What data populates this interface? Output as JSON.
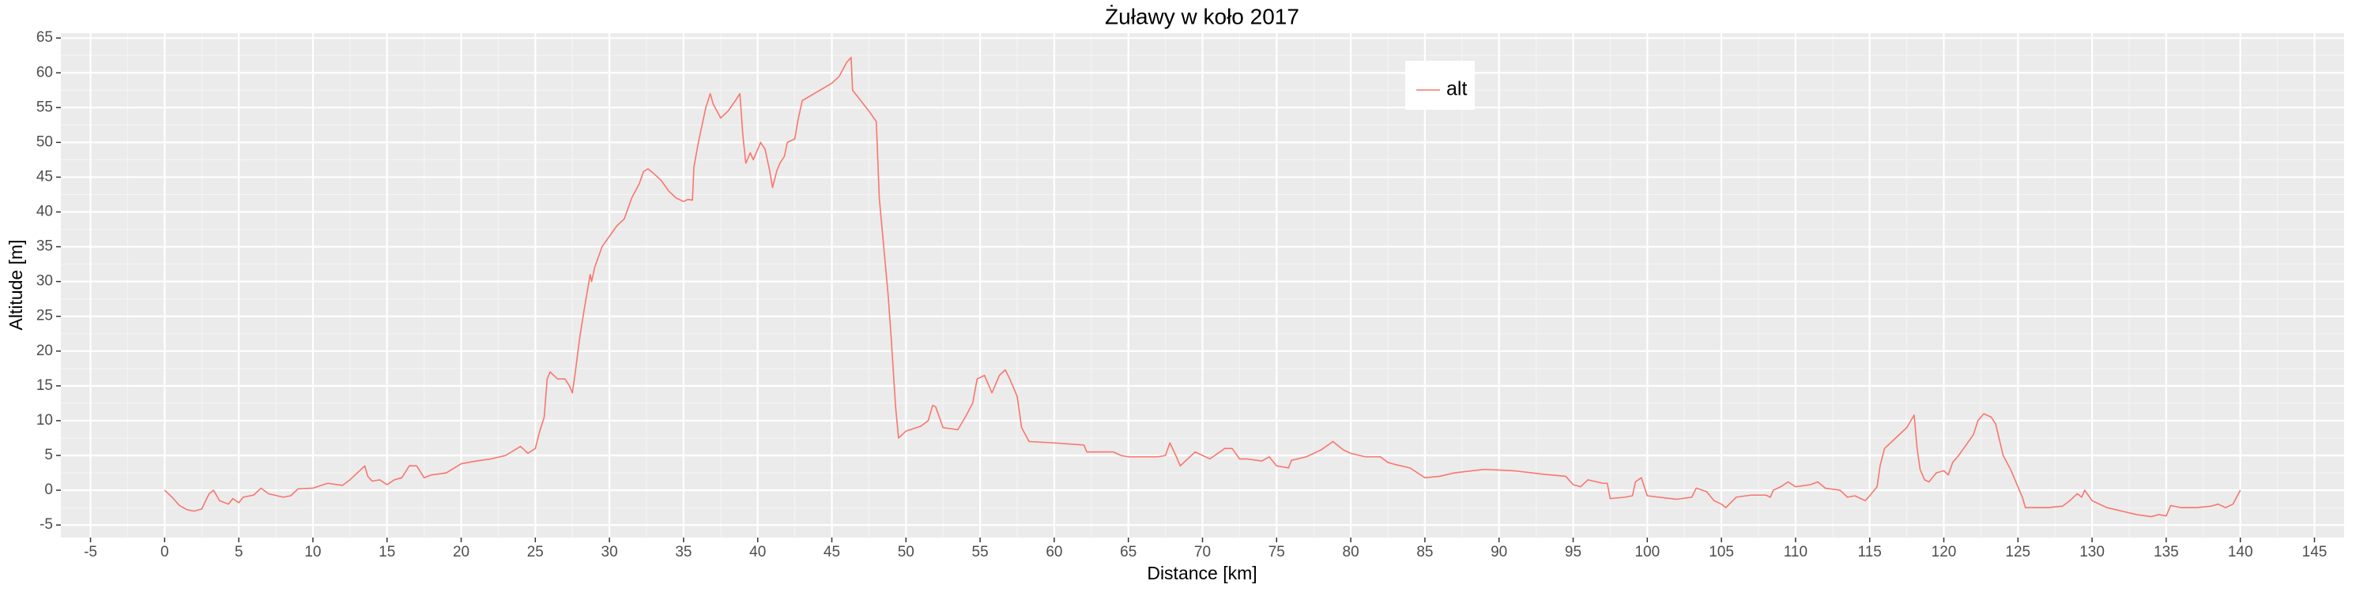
{
  "chart_data": {
    "type": "line",
    "title": "Żuławy w koło 2017",
    "xlabel": "Distance [km]",
    "ylabel": "Altitude [m]",
    "x": [
      0,
      0.5,
      1,
      1.5,
      2,
      2.5,
      3,
      3.3,
      3.7,
      4.3,
      4.6,
      5,
      5.3,
      6,
      6.5,
      7,
      8,
      8.5,
      9,
      10,
      11,
      12,
      12.5,
      13,
      13.5,
      13.7,
      14,
      14.5,
      15,
      15.5,
      16,
      16.5,
      17,
      17.5,
      18,
      19,
      20,
      21,
      22,
      23,
      24,
      24.5,
      25,
      25.3,
      25.6,
      25.8,
      26,
      26.5,
      27,
      27.3,
      27.5,
      27.7,
      28,
      28.3,
      28.5,
      28.7,
      28.8,
      29,
      29.5,
      30,
      30.5,
      31,
      31.5,
      32,
      32.3,
      32.6,
      33,
      33.5,
      34,
      34.5,
      35,
      35.3,
      35.6,
      35.7,
      36,
      36.5,
      36.8,
      37,
      37.5,
      38,
      38.5,
      38.8,
      39,
      39.2,
      39.5,
      39.7,
      40,
      40.2,
      40.5,
      40.8,
      41,
      41.3,
      41.5,
      41.8,
      42,
      42.5,
      42.7,
      43,
      45,
      45.5,
      46,
      46.3,
      46.4,
      47.5,
      48,
      48.2,
      48.5,
      48.8,
      49,
      49.3,
      49.5,
      50,
      51,
      51.5,
      51.8,
      52,
      52.5,
      53.5,
      54,
      54.5,
      54.8,
      55.3,
      55.8,
      56.3,
      56.7,
      57,
      57.5,
      57.8,
      58.3,
      60,
      62,
      62.2,
      64,
      64.5,
      65,
      67,
      67.5,
      67.8,
      68.2,
      68.5,
      69,
      69.5,
      70.5,
      71.5,
      72,
      72.5,
      73,
      74,
      74.5,
      75,
      75.8,
      76,
      77,
      78,
      78.8,
      79.5,
      80,
      81,
      82,
      82.5,
      83,
      84,
      85,
      86,
      87,
      89,
      91,
      93,
      94.5,
      95,
      95.5,
      96,
      97,
      97.3,
      97.5,
      98.5,
      99,
      99.2,
      99.6,
      100,
      102,
      103,
      103.3,
      104,
      104.5,
      105,
      105.3,
      106,
      107,
      108,
      108.3,
      108.5,
      109,
      109.5,
      110,
      111,
      111.5,
      112,
      113,
      113.5,
      114,
      114.7,
      115,
      115.5,
      115.7,
      116,
      116.5,
      117.5,
      118,
      118.2,
      118.4,
      118.7,
      119,
      119.5,
      120,
      120.3,
      120.6,
      121,
      121.5,
      122,
      122.3,
      122.7,
      123.2,
      123.5,
      124,
      124.5,
      125,
      125.3,
      125.5,
      127,
      128,
      128.5,
      129,
      129.3,
      129.5,
      130,
      131,
      132,
      133,
      134,
      134.5,
      135,
      135.3,
      136,
      137,
      138,
      138.5,
      139,
      139.5,
      140
    ],
    "series": [
      {
        "name": "alt",
        "color": "#f8766d",
        "values": [
          0,
          -1,
          -2.2,
          -2.8,
          -3,
          -2.7,
          -0.5,
          0,
          -1.5,
          -2,
          -1.2,
          -1.8,
          -1,
          -0.7,
          0.3,
          -0.5,
          -1,
          -0.8,
          0.2,
          0.3,
          1,
          0.7,
          1.5,
          2.5,
          3.5,
          2,
          1.3,
          1.5,
          0.8,
          1.5,
          1.8,
          3.5,
          3.5,
          1.8,
          2.2,
          2.5,
          3.8,
          4.2,
          4.5,
          5,
          6.3,
          5.3,
          6,
          8.5,
          10.5,
          16,
          17,
          16,
          16,
          15,
          14,
          17,
          22,
          26,
          28.5,
          31,
          30,
          32,
          35,
          36.5,
          38,
          39,
          42,
          44,
          45.8,
          46.2,
          45.5,
          44.5,
          43,
          42,
          41.5,
          41.8,
          41.7,
          46.5,
          50,
          55,
          57,
          55.5,
          53.5,
          54.5,
          56,
          57,
          51,
          47,
          48.5,
          47.5,
          49,
          50,
          49,
          46,
          43.5,
          46,
          47,
          48,
          50,
          50.5,
          53,
          56,
          58.5,
          59.5,
          61.5,
          62.2,
          57.5,
          54.5,
          53,
          42,
          35,
          28,
          22,
          12,
          7.5,
          8.5,
          9.2,
          10,
          12.2,
          12,
          9,
          8.7,
          10.5,
          12.5,
          16,
          16.5,
          14,
          16.5,
          17.3,
          16,
          13.5,
          9,
          7,
          6.8,
          6.5,
          5.5,
          5.5,
          5,
          4.8,
          4.8,
          5,
          6.8,
          5,
          3.5,
          4.5,
          5.5,
          4.5,
          6,
          6,
          4.5,
          4.5,
          4.2,
          4.8,
          3.5,
          3.2,
          4.3,
          4.8,
          5.8,
          7,
          5.8,
          5.3,
          4.8,
          4.8,
          4,
          3.7,
          3.2,
          1.8,
          2,
          2.5,
          3,
          2.8,
          2.3,
          2,
          0.8,
          0.5,
          1.5,
          1,
          1,
          -1.2,
          -1,
          -0.8,
          1.2,
          1.8,
          -0.8,
          -1.3,
          -1,
          0.3,
          -0.2,
          -1.5,
          -2,
          -2.5,
          -1,
          -0.7,
          -0.7,
          -1,
          0,
          0.5,
          1.2,
          0.5,
          0.8,
          1.2,
          0.3,
          0,
          -1,
          -0.8,
          -1.5,
          -0.8,
          0.5,
          3.5,
          6,
          7,
          9,
          10.8,
          6,
          3,
          1.5,
          1.2,
          2.5,
          2.8,
          2.2,
          4,
          5,
          6.5,
          8,
          10,
          11,
          10.5,
          9.5,
          5,
          3,
          0.5,
          -1,
          -2.5,
          -2.5,
          -2.3,
          -1.5,
          -0.5,
          -1,
          0,
          -1.5,
          -2.5,
          -3,
          -3.5,
          -3.8,
          -3.5,
          -3.7,
          -2.2,
          -2.5,
          -2.5,
          -2.3,
          -2,
          -2.5,
          -2,
          0
        ]
      }
    ],
    "xlim": [
      -7,
      147
    ],
    "ylim": [
      -6.8,
      65.7
    ],
    "xticks": [
      -5,
      0,
      5,
      10,
      15,
      20,
      25,
      30,
      35,
      40,
      45,
      50,
      55,
      60,
      65,
      70,
      75,
      80,
      85,
      90,
      95,
      100,
      105,
      110,
      115,
      120,
      125,
      130,
      135,
      140,
      145
    ],
    "yticks": [
      -5,
      0,
      5,
      10,
      15,
      20,
      25,
      30,
      35,
      40,
      45,
      50,
      55,
      60,
      65
    ],
    "grid": true,
    "legend": "top"
  }
}
